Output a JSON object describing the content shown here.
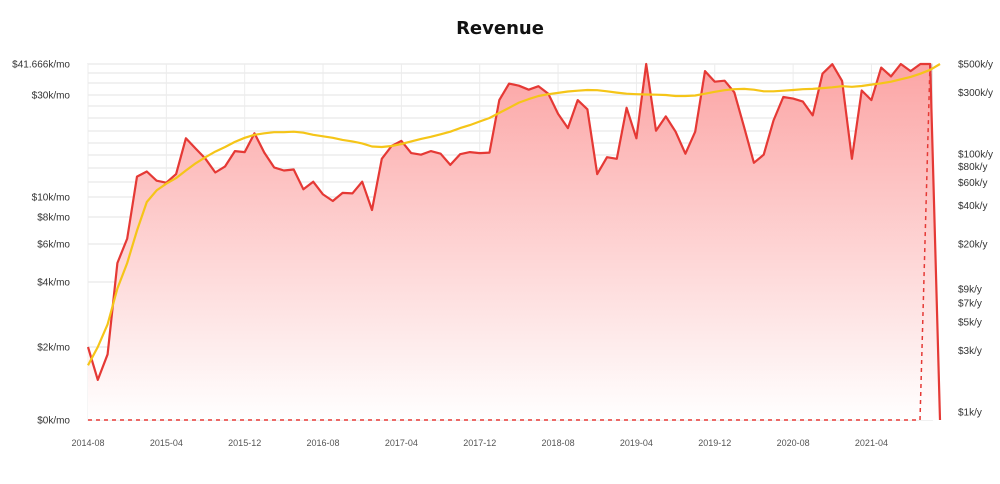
{
  "chart_data": {
    "type": "area",
    "title": "Revenue",
    "xlabel": "",
    "ylabel": "",
    "scale": "log-like",
    "grid": true,
    "legend": "none",
    "x_ticks": [
      "2014-08",
      "2015-04",
      "2015-12",
      "2016-08",
      "2017-04",
      "2017-12",
      "2018-08",
      "2019-04",
      "2019-12",
      "2020-08",
      "2021-04"
    ],
    "y_left_ticks": [
      {
        "label": "$0k/mo",
        "value": 0
      },
      {
        "label": "$2k/mo",
        "value": 2000
      },
      {
        "label": "$4k/mo",
        "value": 4000
      },
      {
        "label": "$6k/mo",
        "value": 6000
      },
      {
        "label": "$8k/mo",
        "value": 8000
      },
      {
        "label": "$10k/mo",
        "value": 10000
      },
      {
        "label": "$30k/mo",
        "value": 30000
      },
      {
        "label": "$41.666k/mo",
        "value": 41666
      }
    ],
    "y_right_ticks": [
      {
        "label": "$1k/y",
        "value": 1000
      },
      {
        "label": "$3k/y",
        "value": 3000
      },
      {
        "label": "$5k/y",
        "value": 5000
      },
      {
        "label": "$7k/y",
        "value": 7000
      },
      {
        "label": "$9k/y",
        "value": 9000
      },
      {
        "label": "$20k/y",
        "value": 20000
      },
      {
        "label": "$40k/y",
        "value": 40000
      },
      {
        "label": "$60k/y",
        "value": 60000
      },
      {
        "label": "$80k/y",
        "value": 80000
      },
      {
        "label": "$100k/y",
        "value": 100000
      },
      {
        "label": "$300k/y",
        "value": 300000
      },
      {
        "label": "$500k/y",
        "value": 500000
      }
    ],
    "x_start": "2014-08",
    "series": [
      {
        "name": "",
        "role": "monthly revenue",
        "color": "#e53935",
        "fill_top": "#fca5a5",
        "values": [
          2000,
          1100,
          1800,
          5000,
          6400,
          14000,
          15000,
          13200,
          12800,
          14500,
          21500,
          19500,
          17500,
          14800,
          16000,
          19000,
          18800,
          22500,
          18700,
          15800,
          15200,
          15400,
          11500,
          13000,
          10500,
          9600,
          10800,
          10700,
          13000,
          8700,
          17500,
          20000,
          21000,
          18600,
          18300,
          19000,
          18500,
          16300,
          18400,
          18800,
          18600,
          18700,
          29000,
          34300,
          33500,
          32000,
          33300,
          30500,
          26300,
          23500,
          29000,
          27200,
          14500,
          17800,
          17500,
          27500,
          21500,
          41666,
          23000,
          25800,
          22800,
          18500,
          22800,
          39000,
          35000,
          35400,
          31000,
          23700,
          16700,
          18300,
          25000,
          29600,
          29300,
          28700,
          26000,
          38000,
          41600,
          35300,
          17500,
          31700,
          29000,
          40300,
          37000,
          41666,
          39000,
          41666,
          41666,
          0
        ]
      },
      {
        "name": "",
        "role": "trend",
        "color": "#f5c518",
        "values": [
          1500,
          2000,
          2700,
          3800,
          5000,
          7000,
          9500,
          11300,
          12600,
          13700,
          15200,
          16600,
          17800,
          18900,
          19800,
          20800,
          21600,
          22200,
          22500,
          22700,
          22700,
          22800,
          22600,
          22200,
          21900,
          21600,
          21200,
          20900,
          20500,
          19900,
          19800,
          20000,
          20400,
          20900,
          21400,
          21800,
          22300,
          22800,
          23500,
          24100,
          24800,
          25500,
          26500,
          27500,
          28500,
          29200,
          29800,
          30300,
          30800,
          31300,
          31600,
          31900,
          31800,
          31400,
          30900,
          30500,
          30300,
          30200,
          30100,
          30000,
          29800,
          29800,
          29900,
          30500,
          31200,
          31800,
          32200,
          32300,
          32000,
          31400,
          31400,
          31600,
          31900,
          32200,
          32300,
          32600,
          32900,
          33300,
          33100,
          33400,
          33900,
          34400,
          35000,
          35900,
          36800,
          38000,
          39500,
          41666
        ]
      }
    ]
  }
}
